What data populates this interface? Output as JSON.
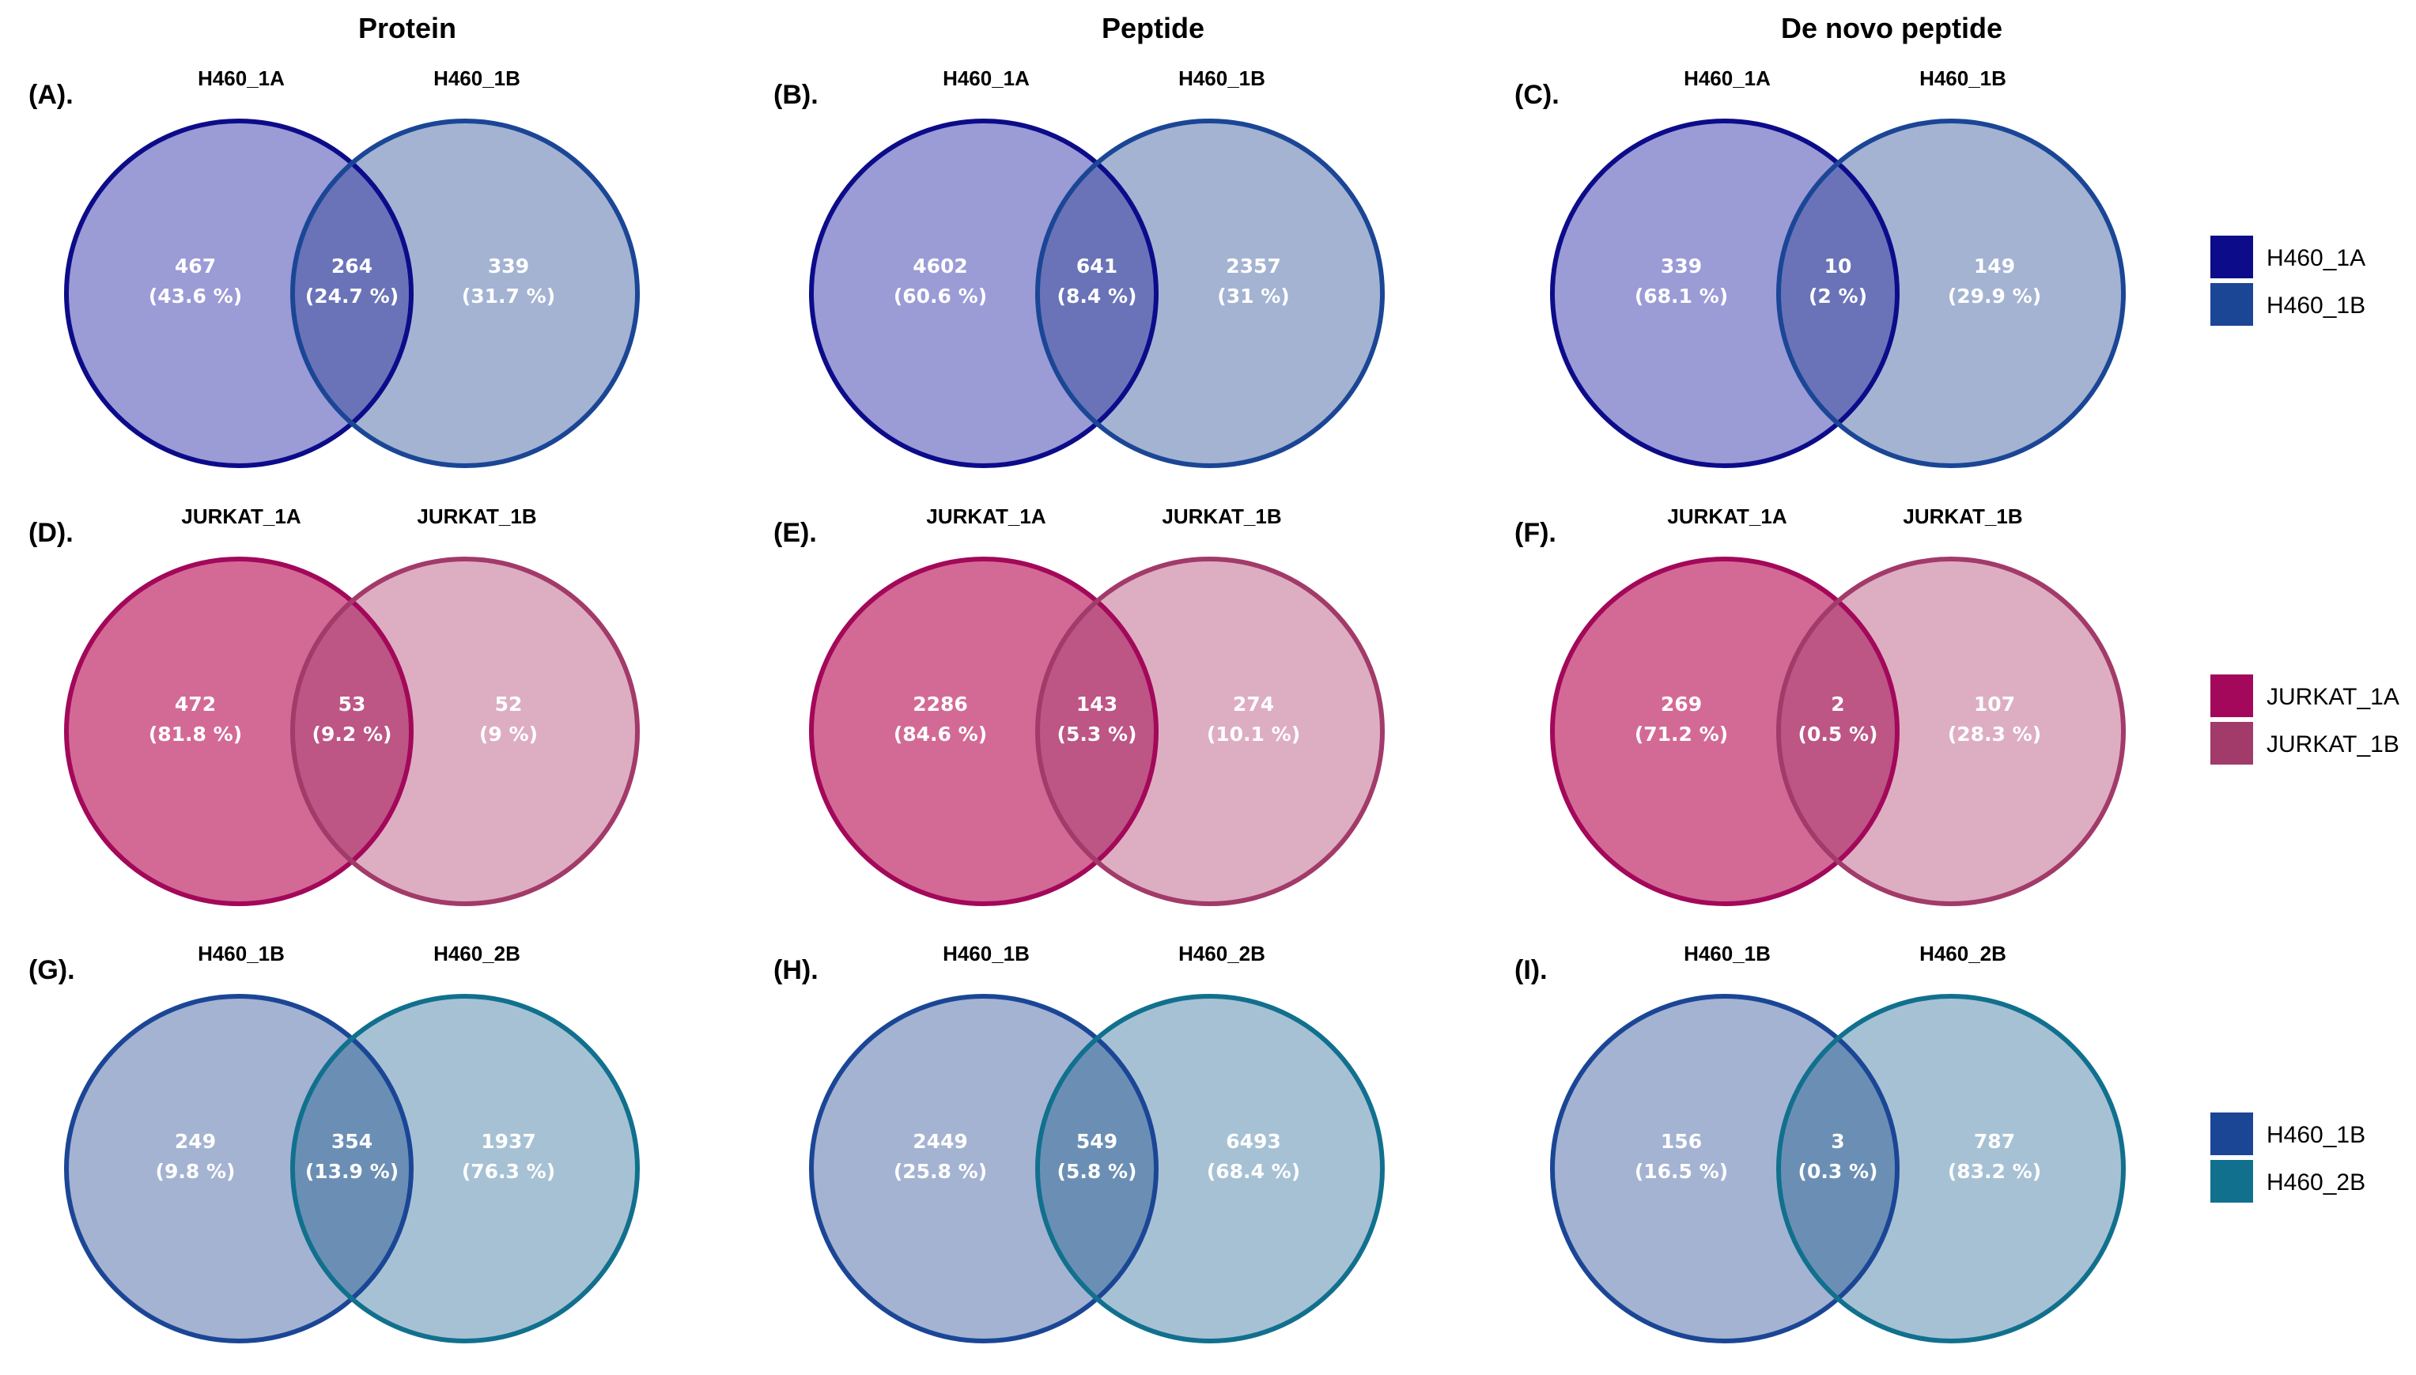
{
  "column_titles": [
    "Protein",
    "Peptide",
    "De novo peptide"
  ],
  "colors": {
    "row1": {
      "a_fill": "#9b9bd6",
      "a_stroke": "#0c0c8a",
      "b_fill": "#a4b3d2",
      "b_stroke": "#1b4696",
      "overlap": "#6a73b8"
    },
    "row2": {
      "a_fill": "#d36a95",
      "a_stroke": "#a3085a",
      "b_fill": "#ddaec1",
      "b_stroke": "#a23a6a",
      "overlap": "#bd5585"
    },
    "row3": {
      "a_fill": "#a4b3d2",
      "a_stroke": "#1b4696",
      "b_fill": "#a7c1d4",
      "b_stroke": "#11708e",
      "overlap": "#6b8fb4"
    }
  },
  "legends": [
    {
      "entries": [
        {
          "label": "H460_1A",
          "color": "#0c0c8a"
        },
        {
          "label": "H460_1B",
          "color": "#1b4696"
        }
      ]
    },
    {
      "entries": [
        {
          "label": "JURKAT_1A",
          "color": "#a3085a"
        },
        {
          "label": "JURKAT_1B",
          "color": "#a23a6a"
        }
      ]
    },
    {
      "entries": [
        {
          "label": "H460_1B",
          "color": "#1b4696"
        },
        {
          "label": "H460_2B",
          "color": "#11708e"
        }
      ]
    }
  ],
  "panels": [
    {
      "id": "(A).",
      "set_a": "H460_1A",
      "set_b": "H460_1B",
      "a_only": {
        "count": "467",
        "pct": "(43.6 %)"
      },
      "both": {
        "count": "264",
        "pct": "(24.7 %)"
      },
      "b_only": {
        "count": "339",
        "pct": "(31.7 %)"
      }
    },
    {
      "id": "(B).",
      "set_a": "H460_1A",
      "set_b": "H460_1B",
      "a_only": {
        "count": "4602",
        "pct": "(60.6 %)"
      },
      "both": {
        "count": "641",
        "pct": "(8.4 %)"
      },
      "b_only": {
        "count": "2357",
        "pct": "(31 %)"
      }
    },
    {
      "id": "(C).",
      "set_a": "H460_1A",
      "set_b": "H460_1B",
      "a_only": {
        "count": "339",
        "pct": "(68.1 %)"
      },
      "both": {
        "count": "10",
        "pct": "(2 %)"
      },
      "b_only": {
        "count": "149",
        "pct": "(29.9 %)"
      }
    },
    {
      "id": "(D).",
      "set_a": "JURKAT_1A",
      "set_b": "JURKAT_1B",
      "a_only": {
        "count": "472",
        "pct": "(81.8 %)"
      },
      "both": {
        "count": "53",
        "pct": "(9.2 %)"
      },
      "b_only": {
        "count": "52",
        "pct": "(9 %)"
      }
    },
    {
      "id": "(E).",
      "set_a": "JURKAT_1A",
      "set_b": "JURKAT_1B",
      "a_only": {
        "count": "2286",
        "pct": "(84.6 %)"
      },
      "both": {
        "count": "143",
        "pct": "(5.3 %)"
      },
      "b_only": {
        "count": "274",
        "pct": "(10.1 %)"
      }
    },
    {
      "id": "(F).",
      "set_a": "JURKAT_1A",
      "set_b": "JURKAT_1B",
      "a_only": {
        "count": "269",
        "pct": "(71.2 %)"
      },
      "both": {
        "count": "2",
        "pct": "(0.5 %)"
      },
      "b_only": {
        "count": "107",
        "pct": "(28.3 %)"
      }
    },
    {
      "id": "(G).",
      "set_a": "H460_1B",
      "set_b": "H460_2B",
      "a_only": {
        "count": "249",
        "pct": "(9.8 %)"
      },
      "both": {
        "count": "354",
        "pct": "(13.9 %)"
      },
      "b_only": {
        "count": "1937",
        "pct": "(76.3 %)"
      }
    },
    {
      "id": "(H).",
      "set_a": "H460_1B",
      "set_b": "H460_2B",
      "a_only": {
        "count": "2449",
        "pct": "(25.8 %)"
      },
      "both": {
        "count": "549",
        "pct": "(5.8 %)"
      },
      "b_only": {
        "count": "6493",
        "pct": "(68.4 %)"
      }
    },
    {
      "id": "(I).",
      "set_a": "H460_1B",
      "set_b": "H460_2B",
      "a_only": {
        "count": "156",
        "pct": "(16.5 %)"
      },
      "both": {
        "count": "3",
        "pct": "(0.3 %)"
      },
      "b_only": {
        "count": "787",
        "pct": "(83.2 %)"
      }
    }
  ]
}
